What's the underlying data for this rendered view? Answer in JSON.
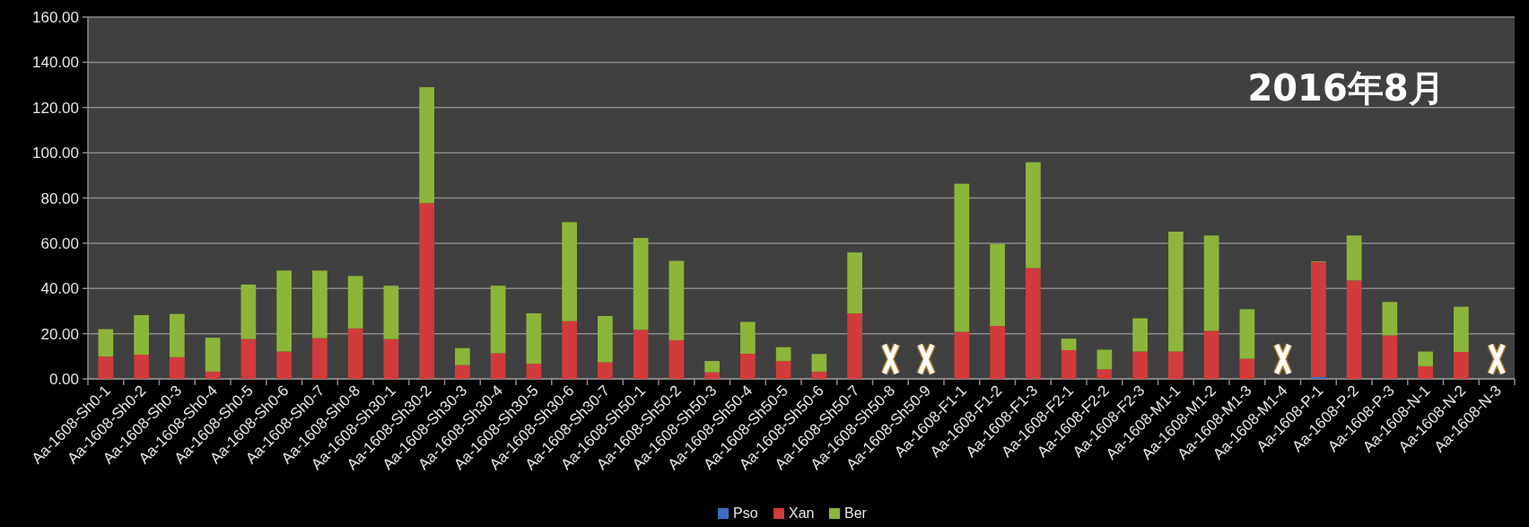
{
  "chart_data": {
    "type": "bar",
    "stacked": true,
    "title": "2016年8月",
    "categories": [
      "Aa-1608-Sh0-1",
      "Aa-1608-Sh0-2",
      "Aa-1608-Sh0-3",
      "Aa-1608-Sh0-4",
      "Aa-1608-Sh0-5",
      "Aa-1608-Sh0-6",
      "Aa-1608-Sh0-7",
      "Aa-1608-Sh0-8",
      "Aa-1608-Sh30-1",
      "Aa-1608-Sh30-2",
      "Aa-1608-Sh30-3",
      "Aa-1608-Sh30-4",
      "Aa-1608-Sh30-5",
      "Aa-1608-Sh30-6",
      "Aa-1608-Sh30-7",
      "Aa-1608-Sh50-1",
      "Aa-1608-Sh50-2",
      "Aa-1608-Sh50-3",
      "Aa-1608-Sh50-4",
      "Aa-1608-Sh50-5",
      "Aa-1608-Sh50-6",
      "Aa-1608-Sh50-7",
      "Aa-1608-Sh50-8",
      "Aa-1608-Sh50-9",
      "Aa-1608-F1-1",
      "Aa-1608-F1-2",
      "Aa-1608-F1-3",
      "Aa-1608-F2-1",
      "Aa-1608-F2-2",
      "Aa-1608-F2-3",
      "Aa-1608-M1-1",
      "Aa-1608-M1-2",
      "Aa-1608-M1-3",
      "Aa-1608-M1-4",
      "Aa-1608-P-1",
      "Aa-1608-P-2",
      "Aa-1608-P-3",
      "Aa-1608-N-1",
      "Aa-1608-N-2",
      "Aa-1608-N-3"
    ],
    "series": [
      {
        "name": "Pso",
        "color": "#3a6fc4",
        "values": [
          null,
          null,
          null,
          null,
          null,
          null,
          null,
          null,
          null,
          null,
          null,
          null,
          null,
          null,
          null,
          null,
          null,
          null,
          null,
          null,
          null,
          null,
          null,
          null,
          null,
          null,
          null,
          null,
          null,
          null,
          null,
          null,
          null,
          null,
          0.8,
          null,
          null,
          null,
          null,
          null
        ]
      },
      {
        "name": "Xan",
        "color": "#d13b3b",
        "values": [
          9.9,
          10.7,
          9.6,
          3.2,
          17.6,
          12.1,
          18.0,
          22.3,
          17.6,
          77.7,
          6.1,
          11.3,
          6.7,
          25.5,
          7.3,
          21.7,
          17.1,
          2.9,
          11.1,
          7.9,
          3.2,
          28.9,
          null,
          null,
          20.8,
          23.4,
          49.0,
          12.7,
          4.2,
          12.1,
          12.1,
          21.2,
          8.9,
          null,
          50.9,
          43.5,
          19.2,
          5.6,
          11.9,
          null
        ]
      },
      {
        "name": "Ber",
        "color": "#8db53a",
        "values": [
          12.1,
          17.5,
          19.1,
          15.0,
          24.1,
          35.8,
          29.9,
          23.2,
          23.6,
          51.3,
          7.5,
          29.9,
          22.3,
          43.8,
          20.5,
          40.6,
          35.1,
          5.0,
          14.1,
          6.1,
          7.8,
          27.0,
          null,
          null,
          65.5,
          36.3,
          46.8,
          5.1,
          8.7,
          14.7,
          53.0,
          42.2,
          21.9,
          null,
          0.3,
          19.9,
          14.8,
          6.5,
          20.0,
          null
        ]
      }
    ],
    "ylim": [
      0,
      160
    ],
    "yticks": [
      {
        "value": 0,
        "label": "0.00"
      },
      {
        "value": 20,
        "label": "20.00"
      },
      {
        "value": 40,
        "label": "40.00"
      },
      {
        "value": 60,
        "label": "60.00"
      },
      {
        "value": 80,
        "label": "80.00"
      },
      {
        "value": 100,
        "label": "100.00"
      },
      {
        "value": 120,
        "label": "120.00"
      },
      {
        "value": 140,
        "label": "140.00"
      },
      {
        "value": 160,
        "label": "160.00"
      }
    ],
    "grid": "y",
    "legend": "bottom"
  }
}
